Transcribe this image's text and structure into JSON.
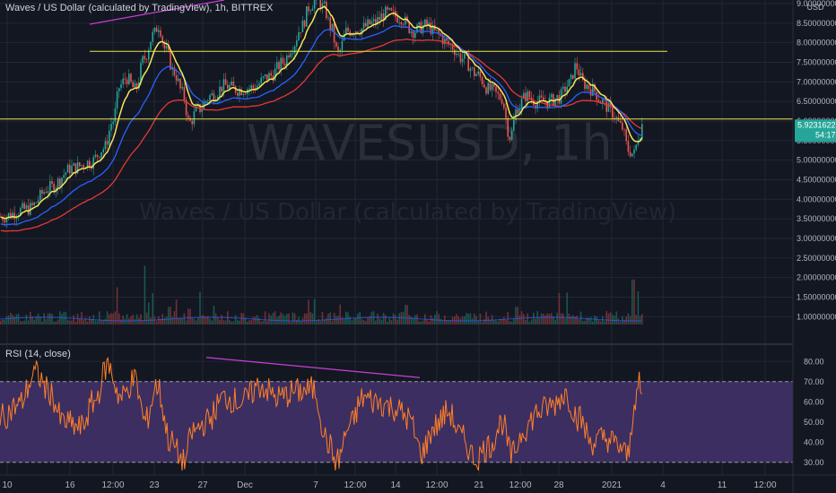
{
  "header": {
    "title": "Waves / US Dollar (calculated by TradingView), 1h, BITTREX",
    "currency": "USD"
  },
  "watermark": {
    "symbol": "WAVESUSD, 1h",
    "description": "Waves / US Dollar (calculated by TradingView)"
  },
  "price_label": {
    "value": "5.92316222",
    "countdown": "54:17"
  },
  "rsi_panel": {
    "title": "RSI (14, close)"
  },
  "colors": {
    "background": "#131722",
    "grid": "#232733",
    "candle_up": "#26a69a",
    "candle_down": "#ef5350",
    "ema_fast": "#f5e65a",
    "ema_mid": "#2962ff",
    "ema_slow": "#e53935",
    "levels": "#e6e24a",
    "trend": "#c93ed8",
    "rsi_line": "#ff7f27",
    "rsi_band": "#3c2e61",
    "price_badge": "#26a69a"
  },
  "chart_data": [
    {
      "type": "candlestick",
      "y_axis": {
        "ticks": [
          "9.00000000",
          "8.50000000",
          "8.00000000",
          "7.50000000",
          "7.00000000",
          "6.50000000",
          "6.00000000",
          "5.50000000",
          "5.00000000",
          "4.50000000",
          "4.00000000",
          "3.50000000",
          "3.00000000",
          "2.50000000",
          "2.00000000",
          "1.50000000",
          "1.00000000"
        ],
        "ylim": [
          0.8,
          9.0
        ]
      },
      "x_axis": {
        "labels": [
          "10",
          "16",
          "12:00",
          "23",
          "27",
          "Dec",
          "7",
          "12:00",
          "14",
          "12:00",
          "21",
          "12:00",
          "28",
          "2021",
          "4",
          "11",
          "12:00"
        ]
      },
      "anchors": [
        [
          0,
          3.55
        ],
        [
          30,
          3.75
        ],
        [
          55,
          4.3
        ],
        [
          80,
          4.8
        ],
        [
          100,
          4.95
        ],
        [
          115,
          5.3
        ],
        [
          125,
          6.0
        ],
        [
          133,
          6.9
        ],
        [
          140,
          7.1
        ],
        [
          150,
          6.8
        ],
        [
          160,
          7.6
        ],
        [
          170,
          8.2
        ],
        [
          176,
          8.45
        ],
        [
          184,
          7.8
        ],
        [
          193,
          7.25
        ],
        [
          203,
          6.7
        ],
        [
          210,
          5.95
        ],
        [
          220,
          6.3
        ],
        [
          235,
          6.65
        ],
        [
          250,
          6.9
        ],
        [
          265,
          6.8
        ],
        [
          280,
          6.85
        ],
        [
          300,
          7.15
        ],
        [
          315,
          7.5
        ],
        [
          325,
          7.9
        ],
        [
          335,
          8.4
        ],
        [
          345,
          8.95
        ],
        [
          352,
          9.15
        ],
        [
          360,
          8.9
        ],
        [
          368,
          8.4
        ],
        [
          376,
          7.7
        ],
        [
          386,
          8.3
        ],
        [
          400,
          8.35
        ],
        [
          415,
          8.5
        ],
        [
          430,
          8.75
        ],
        [
          445,
          8.65
        ],
        [
          460,
          8.3
        ],
        [
          475,
          8.45
        ],
        [
          485,
          8.25
        ],
        [
          500,
          7.95
        ],
        [
          515,
          7.6
        ],
        [
          530,
          7.2
        ],
        [
          545,
          6.8
        ],
        [
          558,
          6.6
        ],
        [
          568,
          5.6
        ],
        [
          576,
          6.35
        ],
        [
          586,
          6.65
        ],
        [
          597,
          6.5
        ],
        [
          610,
          6.5
        ],
        [
          622,
          6.6
        ],
        [
          634,
          6.95
        ],
        [
          641,
          7.4
        ],
        [
          650,
          6.95
        ],
        [
          660,
          6.8
        ],
        [
          670,
          6.5
        ],
        [
          682,
          6.2
        ],
        [
          692,
          5.85
        ],
        [
          700,
          5.25
        ],
        [
          706,
          5.15
        ],
        [
          711,
          5.6
        ],
        [
          716,
          5.95
        ]
      ],
      "ema_offsets": {
        "fast": 0.0,
        "mid": -0.18,
        "slow": -0.35
      },
      "levels": [
        7.78,
        6.05
      ],
      "last_price": 5.92316222
    },
    {
      "type": "bar",
      "series": "volume",
      "base_level": 0.8,
      "spikes": [
        [
          130,
          1.75
        ],
        [
          160,
          2.3
        ],
        [
          170,
          1.6
        ],
        [
          188,
          1.25
        ],
        [
          210,
          1.2
        ],
        [
          350,
          1.45
        ],
        [
          452,
          1.3
        ],
        [
          575,
          1.25
        ],
        [
          620,
          1.1
        ],
        [
          705,
          1.95
        ],
        [
          711,
          1.65
        ]
      ]
    },
    {
      "type": "line",
      "series": "RSI",
      "y_axis": {
        "ticks": [
          "80.00",
          "70.00",
          "60.00",
          "50.00",
          "40.00",
          "30.00"
        ],
        "ylim": [
          25,
          85
        ]
      },
      "band": [
        30,
        70
      ],
      "anchors": [
        [
          0,
          52
        ],
        [
          20,
          58
        ],
        [
          40,
          74
        ],
        [
          55,
          65
        ],
        [
          70,
          50
        ],
        [
          90,
          47
        ],
        [
          105,
          60
        ],
        [
          120,
          78
        ],
        [
          135,
          62
        ],
        [
          150,
          71
        ],
        [
          162,
          50
        ],
        [
          175,
          68
        ],
        [
          190,
          40
        ],
        [
          205,
          30
        ],
        [
          215,
          45
        ],
        [
          230,
          50
        ],
        [
          250,
          62
        ],
        [
          270,
          60
        ],
        [
          290,
          68
        ],
        [
          310,
          62
        ],
        [
          330,
          65
        ],
        [
          350,
          66
        ],
        [
          365,
          40
        ],
        [
          375,
          30
        ],
        [
          390,
          48
        ],
        [
          405,
          62
        ],
        [
          420,
          60
        ],
        [
          440,
          57
        ],
        [
          455,
          52
        ],
        [
          470,
          35
        ],
        [
          485,
          48
        ],
        [
          500,
          55
        ],
        [
          515,
          42
        ],
        [
          530,
          32
        ],
        [
          545,
          38
        ],
        [
          560,
          50
        ],
        [
          570,
          33
        ],
        [
          585,
          47
        ],
        [
          600,
          55
        ],
        [
          615,
          58
        ],
        [
          630,
          64
        ],
        [
          645,
          52
        ],
        [
          660,
          40
        ],
        [
          675,
          42
        ],
        [
          690,
          38
        ],
        [
          700,
          33
        ],
        [
          708,
          62
        ],
        [
          713,
          68
        ],
        [
          716,
          60
        ]
      ]
    }
  ],
  "trendlines": [
    {
      "from": [
        100,
        3.6
      ],
      "to": [
        250,
        3.95
      ],
      "panel": "price"
    },
    {
      "from": [
        230,
        82
      ],
      "to": [
        468,
        72
      ],
      "panel": "rsi"
    }
  ]
}
